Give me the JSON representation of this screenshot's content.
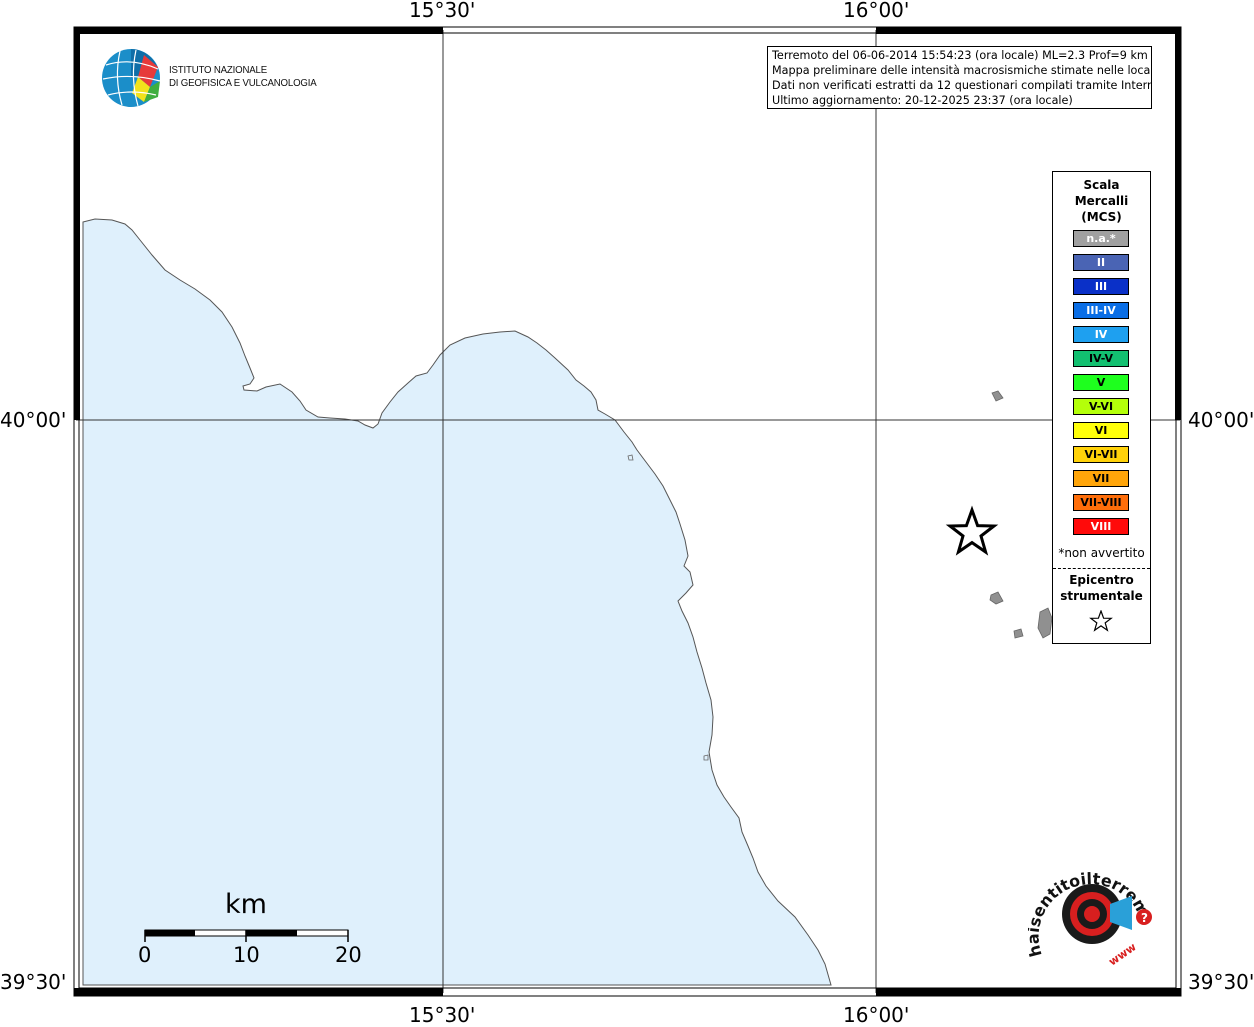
{
  "header": {
    "line1": "Terremoto del 06-06-2014 15:54:23 (ora locale) ML=2.3 Prof=9 km",
    "line2": "Mappa preliminare delle intensità macrosismiche stimate nelle località",
    "line3": "Dati non verificati estratti da 12 questionari compilati tramite Internet.",
    "line4": "Ultimo aggiornamento: 20-12-2025 23:37 (ora locale)"
  },
  "institute": {
    "line1": "ISTITUTO NAZIONALE",
    "line2": "DI GEOFISICA E VULCANOLOGIA"
  },
  "coords": {
    "lon_left": "15°30'",
    "lon_right": "16°00'",
    "lat_top": "40°00'",
    "lat_bottom": "39°30'"
  },
  "legend": {
    "title1": "Scala",
    "title2": "Mercalli",
    "title3": "(MCS)",
    "classes": [
      {
        "label": "n.a.*",
        "color": "#a0a0a0"
      },
      {
        "label": "II",
        "color": "#4a64b4"
      },
      {
        "label": "III",
        "color": "#0a30c8"
      },
      {
        "label": "III-IV",
        "color": "#0a6ee6"
      },
      {
        "label": "IV",
        "color": "#1ea0f0"
      },
      {
        "label": "IV-V",
        "color": "#12c070"
      },
      {
        "label": "V",
        "color": "#1eff1e"
      },
      {
        "label": "V-VI",
        "color": "#b4ff0a"
      },
      {
        "label": "VI",
        "color": "#ffff0a"
      },
      {
        "label": "VI-VII",
        "color": "#ffd20a"
      },
      {
        "label": "VII",
        "color": "#ffa50a"
      },
      {
        "label": "VII-VIII",
        "color": "#ff6e0a"
      },
      {
        "label": "VIII",
        "color": "#ff0a0a"
      }
    ],
    "na_note": "*non avvertito",
    "epicenter1": "Epicentro",
    "epicenter2": "strumentale"
  },
  "scale_bar": {
    "unit": "km",
    "ticks": [
      "0",
      "10",
      "20"
    ]
  },
  "logo_hst": {
    "text1": "haisentitoilterremoto.it",
    "text2": "www"
  },
  "colors": {
    "sea": "#dff0fc",
    "land": "#ffffff",
    "island": "#909090"
  }
}
